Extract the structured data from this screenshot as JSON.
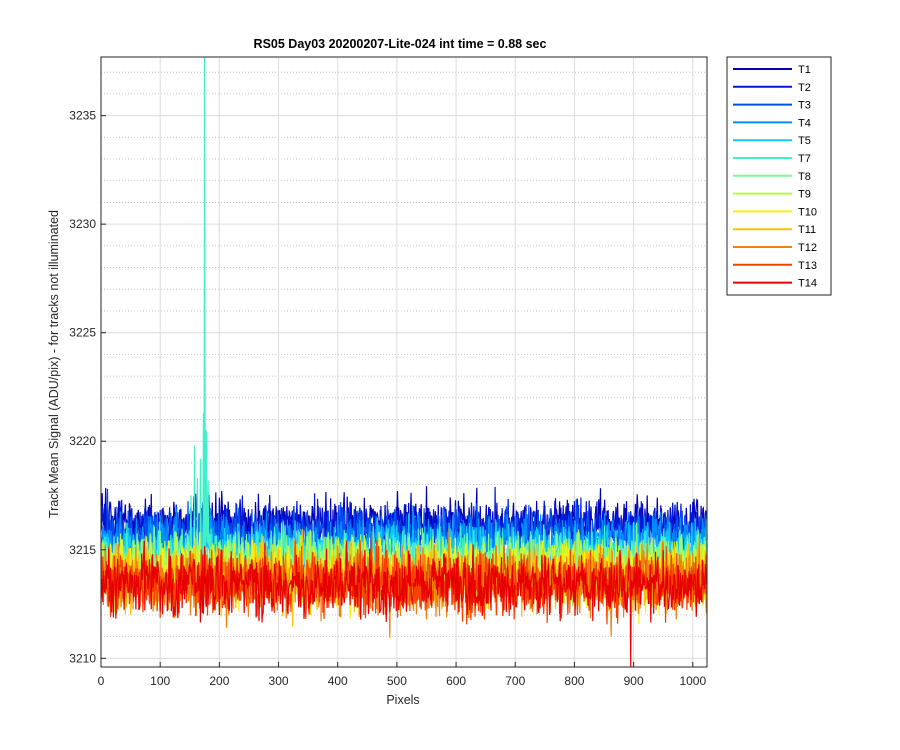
{
  "chart_data": {
    "type": "line",
    "title": "RS05 Day03 20200207-Lite-024 int time = 0.88 sec",
    "xlabel": "Pixels",
    "ylabel": "Track Mean Signal (ADU/pix) - for tracks not illuminated",
    "xlim": [
      0,
      1024
    ],
    "ylim": [
      3209.6,
      3237.7
    ],
    "xticks": [
      0,
      100,
      200,
      300,
      400,
      500,
      600,
      700,
      800,
      900,
      1000
    ],
    "yticks": [
      3210,
      3215,
      3220,
      3225,
      3230,
      3235
    ],
    "grid": true,
    "minor_grid": true,
    "legend_position": "outside-right-top",
    "series": [
      {
        "name": "T1",
        "color": "#0000b8",
        "mean": 3216.2,
        "spread": 0.75,
        "seed": 11
      },
      {
        "name": "T2",
        "color": "#0018d8",
        "mean": 3216.0,
        "spread": 0.75,
        "seed": 12
      },
      {
        "name": "T3",
        "color": "#0050f0",
        "mean": 3215.7,
        "spread": 0.75,
        "seed": 13
      },
      {
        "name": "T4",
        "color": "#0090ff",
        "mean": 3215.3,
        "spread": 0.8,
        "seed": 14
      },
      {
        "name": "T5",
        "color": "#10c8f8",
        "mean": 3214.9,
        "spread": 0.8,
        "seed": 15
      },
      {
        "name": "T7",
        "color": "#40f0c8",
        "mean": 3214.6,
        "spread": 0.85,
        "seed": 16,
        "spikes": [
          [
            152,
            3217.5
          ],
          [
            158,
            3219.8
          ],
          [
            163,
            3218.3
          ],
          [
            168,
            3219.2
          ],
          [
            173,
            3221.3
          ],
          [
            175,
            3237.7
          ],
          [
            178,
            3220.5
          ],
          [
            181,
            3218.2
          ]
        ]
      },
      {
        "name": "T8",
        "color": "#80f890",
        "mean": 3214.4,
        "spread": 0.85,
        "seed": 17
      },
      {
        "name": "T9",
        "color": "#b8f848",
        "mean": 3214.2,
        "spread": 0.85,
        "seed": 18
      },
      {
        "name": "T10",
        "color": "#f8f010",
        "mean": 3213.9,
        "spread": 0.9,
        "seed": 19
      },
      {
        "name": "T11",
        "color": "#ffc000",
        "mean": 3213.7,
        "spread": 0.9,
        "seed": 20
      },
      {
        "name": "T12",
        "color": "#f08010",
        "mean": 3213.6,
        "spread": 0.9,
        "seed": 21
      },
      {
        "name": "T13",
        "color": "#f84000",
        "mean": 3213.5,
        "spread": 0.9,
        "seed": 22
      },
      {
        "name": "T14",
        "color": "#e80000",
        "mean": 3213.4,
        "spread": 0.9,
        "seed": 23,
        "spikes": [
          [
            895,
            3209.6
          ]
        ]
      }
    ]
  }
}
